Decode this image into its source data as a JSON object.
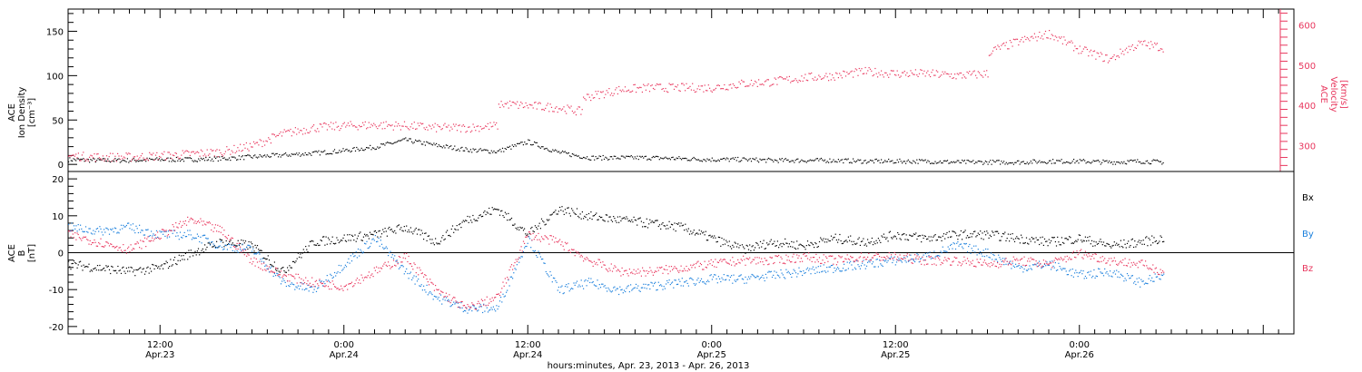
{
  "colors": {
    "black": "#000000",
    "pink": "#e8365d",
    "blue": "#1a7fdc"
  },
  "xaxis": {
    "range_hours": [
      0,
      80
    ],
    "title": "hours:minutes, Apr. 23, 2013 - Apr. 26, 2013",
    "ticks": [
      {
        "hour": 6,
        "time": "12:00",
        "date": "Apr.23"
      },
      {
        "hour": 18,
        "time": "0:00",
        "date": "Apr.24"
      },
      {
        "hour": 30,
        "time": "12:00",
        "date": "Apr.24"
      },
      {
        "hour": 42,
        "time": "0:00",
        "date": "Apr.25"
      },
      {
        "hour": 54,
        "time": "12:00",
        "date": "Apr.25"
      },
      {
        "hour": 66,
        "time": "0:00",
        "date": "Apr.26"
      }
    ]
  },
  "top_panel": {
    "left_label": [
      "ACE",
      "Ion Density",
      "[cm⁻³]"
    ],
    "right_label": [
      "ACE",
      "Velocity",
      "[km/s]"
    ]
  },
  "bottom_panel": {
    "left_label": [
      "ACE",
      "B",
      "[nT]"
    ],
    "legend": [
      "Bx",
      "By",
      "Bz"
    ]
  },
  "chart_data": [
    {
      "type": "scatter",
      "title": "",
      "xlabel": "hours:minutes, Apr. 23, 2013 - Apr. 26, 2013",
      "ylabel": "ACE Ion Density [cm⁻³]",
      "ylim": [
        -8,
        175
      ],
      "yticks": [
        0,
        50,
        100,
        150
      ],
      "series": [
        {
          "name": "",
          "color": "black",
          "x": [
            0,
            2,
            4,
            6,
            8,
            10,
            12,
            14,
            16,
            18,
            20,
            22,
            24,
            26,
            28,
            30,
            32,
            34,
            36,
            38,
            40,
            42,
            44,
            46,
            48,
            50,
            52,
            54,
            56,
            58,
            60,
            62,
            64,
            66,
            68,
            70,
            71.5
          ],
          "y": [
            6,
            5,
            5,
            6,
            6,
            7,
            9,
            11,
            13,
            16,
            20,
            28,
            22,
            17,
            15,
            26,
            14,
            8,
            8,
            8,
            7,
            6,
            6,
            5,
            5,
            5,
            4,
            4,
            4,
            3,
            3,
            3,
            4,
            4,
            3,
            4,
            3
          ]
        }
      ]
    },
    {
      "type": "scatter",
      "title": "",
      "xlabel": "hours:minutes, Apr. 23, 2013 - Apr. 26, 2013",
      "ylabel": "ACE Velocity [km/s]",
      "ylim": [
        235,
        640
      ],
      "yticks": [
        300,
        400,
        500,
        600
      ],
      "series": [
        {
          "name": "",
          "color": "pink",
          "x": [
            0,
            2,
            4,
            6,
            8,
            10,
            12,
            14,
            16,
            18,
            20,
            22,
            24,
            26,
            28,
            28.1,
            30,
            32,
            33.5,
            33.6,
            36,
            38,
            40,
            42,
            44,
            46,
            48,
            50,
            52,
            54,
            56,
            58,
            60,
            60.1,
            62,
            64,
            65,
            66,
            68,
            69,
            70,
            71.5
          ],
          "y": [
            275,
            272,
            272,
            275,
            280,
            285,
            300,
            330,
            345,
            350,
            352,
            350,
            345,
            345,
            350,
            405,
            400,
            395,
            385,
            420,
            440,
            445,
            445,
            445,
            455,
            460,
            470,
            475,
            485,
            480,
            480,
            475,
            480,
            535,
            560,
            580,
            560,
            540,
            515,
            540,
            555,
            545
          ]
        }
      ]
    },
    {
      "type": "scatter",
      "title": "",
      "xlabel": "hours:minutes, Apr. 23, 2013 - Apr. 26, 2013",
      "ylabel": "ACE B [nT]",
      "ylim": [
        -22,
        22
      ],
      "yticks": [
        -20,
        -10,
        0,
        10,
        20
      ],
      "series": [
        {
          "name": "Bx",
          "color": "black",
          "x": [
            0,
            2,
            4,
            6,
            8,
            10,
            12,
            14,
            16,
            18,
            20,
            22,
            24,
            26,
            28,
            30,
            32,
            34,
            36,
            38,
            40,
            42,
            44,
            46,
            48,
            50,
            52,
            54,
            56,
            58,
            60,
            62,
            64,
            66,
            68,
            70,
            71.5
          ],
          "y": [
            -3,
            -4,
            -5,
            -4,
            0,
            3,
            2,
            -5,
            3,
            4,
            5,
            7,
            3,
            9,
            12,
            5,
            12,
            10,
            9,
            8,
            7,
            4,
            1,
            3,
            2,
            4,
            3,
            5,
            4,
            5,
            5,
            4,
            3,
            4,
            2,
            3,
            4
          ]
        },
        {
          "name": "By",
          "color": "blue",
          "x": [
            0,
            2,
            4,
            6,
            8,
            10,
            12,
            14,
            16,
            18,
            20,
            22,
            24,
            26,
            28,
            30,
            32,
            34,
            36,
            38,
            40,
            42,
            44,
            46,
            48,
            50,
            52,
            54,
            56,
            58,
            60,
            62,
            64,
            66,
            68,
            70,
            71.5
          ],
          "y": [
            7,
            6,
            7,
            5,
            5,
            2,
            1,
            -8,
            -10,
            -3,
            4,
            -5,
            -12,
            -15,
            -15,
            4,
            -10,
            -8,
            -10,
            -9,
            -8,
            -7,
            -7,
            -6,
            -5,
            -4,
            -3,
            -2,
            -1,
            2,
            0,
            -4,
            -3,
            -6,
            -5,
            -8,
            -6
          ]
        },
        {
          "name": "Bz",
          "color": "pink",
          "x": [
            0,
            2,
            4,
            6,
            8,
            10,
            12,
            14,
            16,
            18,
            20,
            22,
            24,
            26,
            28,
            30,
            32,
            34,
            36,
            38,
            40,
            42,
            44,
            46,
            48,
            50,
            52,
            54,
            56,
            58,
            60,
            62,
            64,
            66,
            68,
            70,
            71.5
          ],
          "y": [
            5,
            3,
            1,
            5,
            9,
            6,
            -2,
            -6,
            -8,
            -9,
            -5,
            -1,
            -10,
            -15,
            -12,
            5,
            3,
            -2,
            -5,
            -5,
            -4,
            -3,
            -2,
            -2,
            -1,
            -2,
            -1,
            -1,
            -2,
            -2,
            -3,
            -2,
            -3,
            0,
            -2,
            -3,
            -5
          ]
        }
      ]
    }
  ]
}
